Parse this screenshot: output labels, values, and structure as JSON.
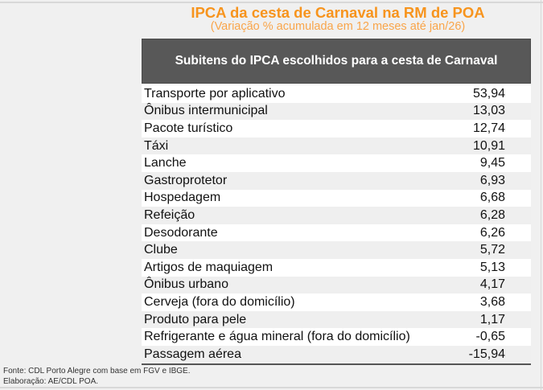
{
  "title": "IPCA da cesta de Carnaval na RM de POA",
  "subtitle": "(Variação % acumulada em 12 meses até jan/26)",
  "table": {
    "header": "Subitens do IPCA escolhidos para a cesta de Carnaval",
    "rows": [
      {
        "label": "Transporte por aplicativo",
        "value": "53,94"
      },
      {
        "label": "Ônibus intermunicipal",
        "value": "13,03"
      },
      {
        "label": "Pacote turístico",
        "value": "12,74"
      },
      {
        "label": "Táxi",
        "value": "10,91"
      },
      {
        "label": "Lanche",
        "value": "9,45"
      },
      {
        "label": "Gastroprotetor",
        "value": "6,93"
      },
      {
        "label": "Hospedagem",
        "value": "6,68"
      },
      {
        "label": "Refeição",
        "value": "6,28"
      },
      {
        "label": "Desodorante",
        "value": "6,26"
      },
      {
        "label": "Clube",
        "value": "5,72"
      },
      {
        "label": "Artigos de maquiagem",
        "value": "5,13"
      },
      {
        "label": "Ônibus urbano",
        "value": "4,17"
      },
      {
        "label": "Cerveja (fora do domicílio)",
        "value": "3,68"
      },
      {
        "label": "Produto para pele",
        "value": "1,17"
      },
      {
        "label": "Refrigerante e água mineral (fora do domicílio)",
        "value": "-0,65"
      },
      {
        "label": "Passagem aérea",
        "value": "-15,94"
      }
    ]
  },
  "footer": {
    "source": "Fonte: CDL Porto Alegre com base em FGV e IBGE.",
    "credit": "Elaboração: AE/CDL POA."
  },
  "colors": {
    "title": "#f7941d",
    "header_bg": "#585858"
  }
}
